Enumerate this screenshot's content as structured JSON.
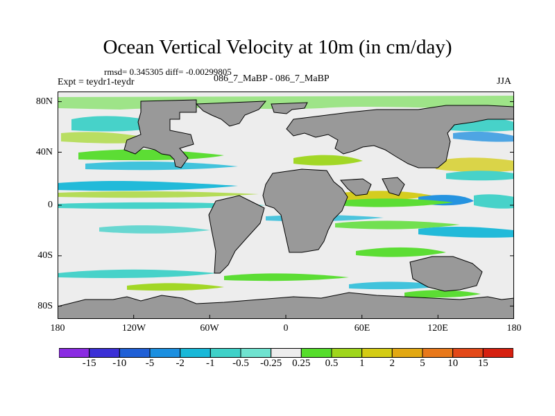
{
  "title": "Ocean Vertical Velocity at 10m (in cm/day)",
  "stats": "rmsd= 0.345305 diff= -0.00299805",
  "expt": "Expt = teydr1-teydr",
  "case": "086_7_MaBP - 086_7_MaBP",
  "season": "JJA",
  "lat_ticks": [
    "80N",
    "40N",
    "0",
    "40S",
    "80S"
  ],
  "lon_ticks": [
    "180",
    "120W",
    "60W",
    "0",
    "60E",
    "120E",
    "180"
  ],
  "colorbar": {
    "labels": [
      "-15",
      "-10",
      "-5",
      "-2",
      "-1",
      "-0.5",
      "-0.25",
      "0.25",
      "0.5",
      "1",
      "2",
      "5",
      "10",
      "15"
    ],
    "colors": [
      "#8a2be2",
      "#3b2fd6",
      "#1f5fd6",
      "#1b8fe0",
      "#18b8d8",
      "#3fd1c8",
      "#6fe3d0",
      "#ededed",
      "#55dd2b",
      "#9fd61c",
      "#d4cc14",
      "#e2a812",
      "#e8781a",
      "#e34818",
      "#d62010"
    ]
  },
  "colors": {
    "land": "#999999",
    "neutral": "#ededed"
  }
}
